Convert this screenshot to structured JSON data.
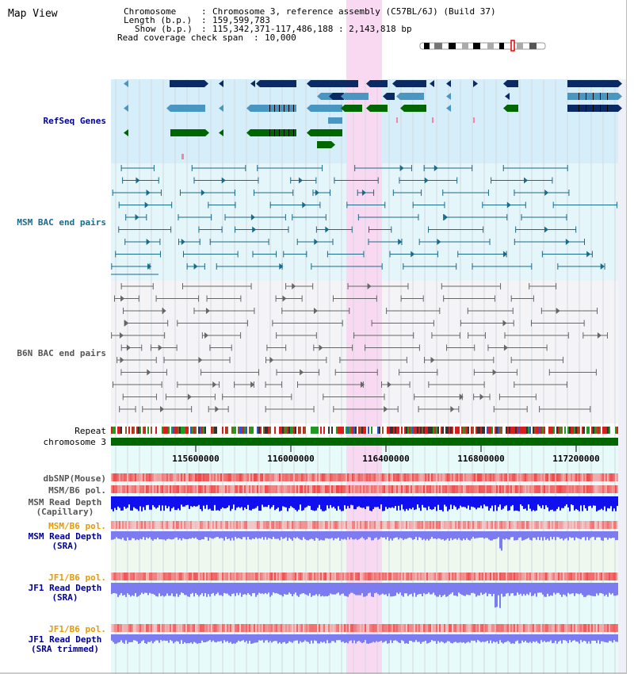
{
  "window": {
    "title": "Map View"
  },
  "header": {
    "chromosome_label": "Chromosome",
    "chromosome_value": "Chromosome 3, reference assembly (C57BL/6J) (Build 37)",
    "length_label": "Length (b.p.)",
    "length_value": "159,599,783",
    "show_label": "Show (b.p.)",
    "show_value": "115,342,371-117,486,188 : 2,143,818 bp",
    "coverage_label": "Read coverage check span",
    "coverage_value": "10,000"
  },
  "tracks": {
    "refseq": "RefSeq Genes",
    "msm_bac": "MSM BAC end pairs",
    "b6n_bac": "B6N BAC end pairs",
    "repeat": "Repeat",
    "chromosome": "chromosome 3",
    "dbsnp": "dbSNP(Mouse)",
    "msm_b6_pol": "MSM/B6 pol.",
    "msm_read_depth_cap_1": "MSM Read Depth",
    "msm_read_depth_cap_2": "(Capillary)",
    "msm_b6_pol_2": "MSM/B6 pol.",
    "msm_read_depth_sra_1": "MSM Read Depth",
    "msm_read_depth_sra_2": "(SRA)",
    "jf1_b6_pol": "JF1/B6 pol.",
    "jf1_read_depth_1": "JF1 Read Depth",
    "jf1_read_depth_2": "(SRA)",
    "jf1_b6_pol_2": "JF1/B6 pol.",
    "jf1_trim_1": "JF1 Read Depth",
    "jf1_trim_2": "(SRA trimmed)"
  },
  "axis": {
    "ticks": [
      "115600000",
      "116000000",
      "116400000",
      "116800000",
      "117200000"
    ]
  },
  "colors": {
    "highlight": "#f9d9f2",
    "refseq_bg": "#d6eefa",
    "msm_bg": "#e4f6f9",
    "gene_navy": "#0a2a66",
    "gene_teal": "#4a96c2",
    "gene_green": "#006600",
    "bac_teal": "#1a6a8a",
    "bac_gray": "#666666",
    "chrom_green": "#006600",
    "depth_blue": "#1010ee",
    "depth_light": "#7c7cf0",
    "label_navy": "#000099",
    "label_orange": "#e69a00",
    "label_teal": "#1a6a8a"
  }
}
